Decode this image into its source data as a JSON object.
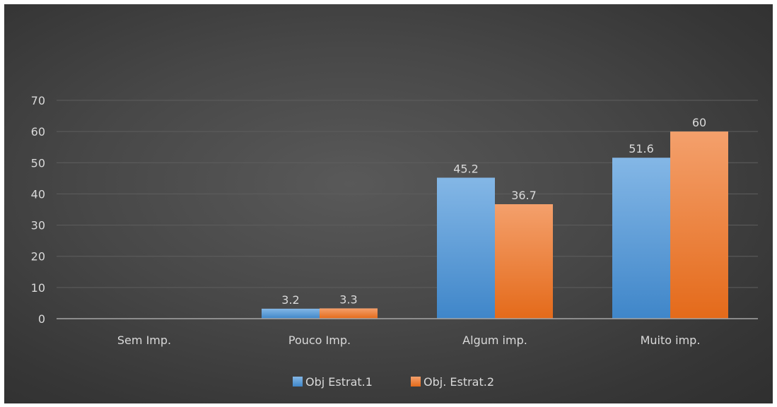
{
  "chart_data": {
    "type": "bar",
    "title": "",
    "xlabel": "",
    "ylabel": "",
    "categories": [
      "Sem Imp.",
      "Pouco Imp.",
      "Algum imp.",
      "Muito imp."
    ],
    "series": [
      {
        "name": "Obj Estrat.1",
        "values": [
          0,
          3.2,
          45.2,
          51.6
        ],
        "labels": [
          null,
          "3.2",
          "45.2",
          "51.6"
        ],
        "color": "#5b9bd5"
      },
      {
        "name": "Obj. Estrat.2",
        "values": [
          0,
          3.3,
          36.7,
          60
        ],
        "labels": [
          null,
          "3.3",
          "36.7",
          "60"
        ],
        "color": "#ed7d31"
      }
    ],
    "ylim": [
      0,
      70
    ],
    "yticks": [
      "0",
      "10",
      "20",
      "30",
      "40",
      "50",
      "60",
      "70"
    ],
    "grid": true,
    "legend": "bottom-center"
  }
}
